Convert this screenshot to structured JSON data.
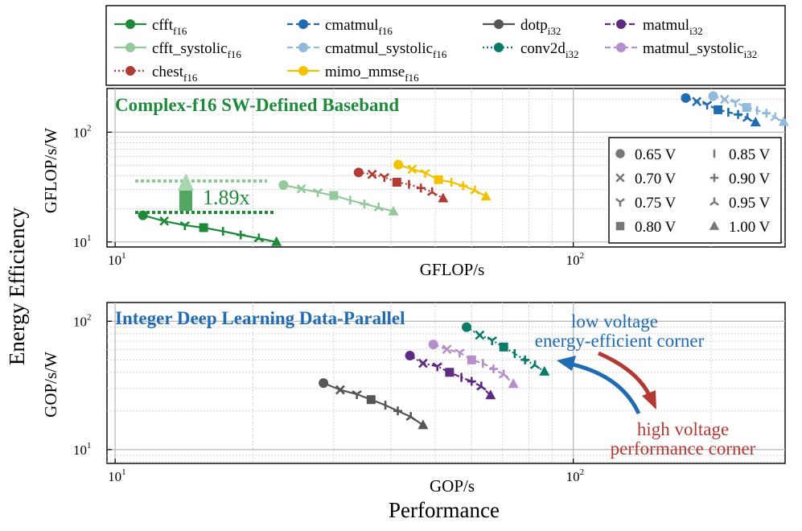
{
  "figure": {
    "ylabel": "Energy Efficiency",
    "xlabel": "Performance"
  },
  "colors": {
    "cfft_f16": "#1f8b3a",
    "cfft_systolic_f16": "#93c99b",
    "chest_f16": "#b23a35",
    "mimo_mmse_f16": "#f2c200",
    "cmatmul_f16": "#1f6bb4",
    "cmatmul_systolic_f16": "#90bbdd",
    "dotp_i32": "#555555",
    "conv2d_i32": "#0b7b69",
    "matmul_i32": "#5e2a84",
    "matmul_systolic_i32": "#b58fcc",
    "annotation_green": "#1f8b3a",
    "annotation_blue": "#1f6bb4",
    "annotation_red": "#b23a35",
    "marker_legend": "#777777"
  },
  "legend": {
    "entries": [
      {
        "key": "cfft_f16",
        "name": "cfft",
        "sub": "f16",
        "style": "solid"
      },
      {
        "key": "cmatmul_f16",
        "name": "cmatmul",
        "sub": "f16",
        "style": "dashed"
      },
      {
        "key": "dotp_i32",
        "name": "dotp",
        "sub": "i32",
        "style": "solid"
      },
      {
        "key": "matmul_i32",
        "name": "matmul",
        "sub": "i32",
        "style": "dashdot"
      },
      {
        "key": "cfft_systolic_f16",
        "name": "cfft_systolic",
        "sub": "f16",
        "style": "solid"
      },
      {
        "key": "cmatmul_systolic_f16",
        "name": "cmatmul_systolic",
        "sub": "f16",
        "style": "dashed"
      },
      {
        "key": "conv2d_i32",
        "name": "conv2d",
        "sub": "i32",
        "style": "dotted"
      },
      {
        "key": "matmul_systolic_i32",
        "name": "matmul_systolic",
        "sub": "i32",
        "style": "dashed"
      },
      {
        "key": "chest_f16",
        "name": "chest",
        "sub": "f16",
        "style": "dotted"
      },
      {
        "key": "mimo_mmse_f16",
        "name": "mimo_mmse",
        "sub": "f16",
        "style": "solid"
      }
    ]
  },
  "voltage_legend": {
    "entries": [
      {
        "marker": "circle",
        "label": "0.65 V"
      },
      {
        "marker": "x",
        "label": "0.70 V"
      },
      {
        "marker": "tri_down",
        "label": "0.75 V"
      },
      {
        "marker": "square",
        "label": "0.80 V"
      },
      {
        "marker": "vline",
        "label": "0.85 V"
      },
      {
        "marker": "plus",
        "label": "0.90 V"
      },
      {
        "marker": "tri_up_thin",
        "label": "0.95 V"
      },
      {
        "marker": "triangle",
        "label": "1.00 V"
      }
    ]
  },
  "chart_data": [
    {
      "type": "line",
      "title": "Complex-f16 SW-Defined Baseband",
      "xlabel": "GFLOP/s",
      "ylabel": "GFLOP/s/W",
      "xscale": "log",
      "yscale": "log",
      "xlim": [
        9.6,
        290
      ],
      "ylim": [
        9,
        250
      ],
      "xticks": [
        10,
        100
      ],
      "yticks": [
        10,
        100
      ],
      "grid": true,
      "voltages": [
        "0.65 V",
        "0.70 V",
        "0.75 V",
        "0.80 V",
        "0.85 V",
        "0.90 V",
        "0.95 V",
        "1.00 V"
      ],
      "series": [
        {
          "key": "cfft_f16",
          "name": "cfft_f16",
          "x": [
            11.5,
            12.8,
            14.2,
            15.6,
            17.2,
            18.8,
            20.6,
            22.5
          ],
          "y": [
            17.5,
            15.5,
            14.2,
            13.5,
            12.5,
            11.6,
            10.8,
            10.0
          ]
        },
        {
          "key": "cfft_systolic_f16",
          "name": "cfft_systolic_f16",
          "x": [
            23.3,
            25.5,
            27.7,
            30.0,
            32.6,
            35.0,
            37.6,
            40.5
          ],
          "y": [
            33.0,
            30.5,
            28.4,
            26.5,
            24.0,
            22.2,
            20.6,
            19.0
          ]
        },
        {
          "key": "chest_f16",
          "name": "chest_f16",
          "x": [
            34.0,
            36.4,
            38.7,
            41.2,
            43.8,
            46.5,
            49.2,
            52.0
          ],
          "y": [
            43.0,
            41.3,
            39.0,
            35.0,
            33.5,
            31.0,
            28.5,
            25.0
          ]
        },
        {
          "key": "mimo_mmse_f16",
          "name": "mimo_mmse_f16",
          "x": [
            41.5,
            44.5,
            47.5,
            50.8,
            54.2,
            57.5,
            61.0,
            64.5
          ],
          "y": [
            50.5,
            46.0,
            42.5,
            37.0,
            35.0,
            32.5,
            29.5,
            26.0
          ]
        },
        {
          "key": "cmatmul_f16",
          "name": "cmatmul_f16",
          "x": [
            176,
            186,
            196,
            207,
            218,
            229,
            240,
            250
          ],
          "y": [
            205,
            190,
            178,
            160,
            152,
            145,
            135,
            123
          ]
        },
        {
          "key": "cmatmul_systolic_f16",
          "name": "cmatmul_systolic_f16",
          "x": [
            202,
            214,
            226,
            239,
            252,
            264,
            276,
            288
          ],
          "y": [
            213,
            199,
            187,
            168,
            158,
            149,
            137,
            124
          ]
        }
      ],
      "annotations": [
        {
          "text": "1.89x",
          "kind": "improvement",
          "from": "cfft_f16",
          "to": "cfft_systolic_f16"
        }
      ]
    },
    {
      "type": "line",
      "title": "Integer Deep Learning Data-Parallel",
      "xlabel": "GOP/s",
      "ylabel": "GOP/s/W",
      "xscale": "log",
      "yscale": "log",
      "xlim": [
        9.6,
        290
      ],
      "ylim": [
        7.8,
        140
      ],
      "xticks": [
        10,
        100
      ],
      "yticks": [
        10,
        100
      ],
      "grid": true,
      "voltages": [
        "0.65 V",
        "0.70 V",
        "0.75 V",
        "0.80 V",
        "0.85 V",
        "0.90 V",
        "0.95 V",
        "1.00 V"
      ],
      "series": [
        {
          "key": "dotp_i32",
          "name": "dotp_i32",
          "x": [
            28.5,
            31.0,
            33.7,
            36.2,
            38.9,
            41.4,
            44.2,
            47.0
          ],
          "y": [
            33.0,
            29.2,
            27.0,
            24.5,
            22.2,
            20.0,
            18.0,
            15.5
          ]
        },
        {
          "key": "matmul_i32",
          "name": "matmul_i32",
          "x": [
            44.0,
            47.0,
            50.5,
            53.7,
            57.0,
            60.0,
            63.0,
            66.0
          ],
          "y": [
            54.0,
            47.0,
            44.5,
            40.0,
            36.5,
            34.0,
            31.0,
            26.5
          ]
        },
        {
          "key": "matmul_systolic_i32",
          "name": "matmul_systolic_i32",
          "x": [
            49.5,
            53.0,
            56.5,
            60.0,
            63.5,
            67.0,
            70.5,
            74.0
          ],
          "y": [
            66.0,
            60.5,
            57.0,
            50.0,
            47.0,
            42.5,
            38.5,
            32.5
          ]
        },
        {
          "key": "conv2d_i32",
          "name": "conv2d_i32",
          "x": [
            58.5,
            62.5,
            66.5,
            70.5,
            74.5,
            78.5,
            82.5,
            86.5
          ],
          "y": [
            90.0,
            78.0,
            71.0,
            63.0,
            56.0,
            50.0,
            45.5,
            40.5
          ]
        }
      ],
      "annotations": [
        {
          "text": "low voltage",
          "kind": "label",
          "color_key": "annotation_blue"
        },
        {
          "text": "energy-efficient corner",
          "kind": "label",
          "color_key": "annotation_blue"
        },
        {
          "text": "high voltage",
          "kind": "label",
          "color_key": "annotation_red"
        },
        {
          "text": "performance corner",
          "kind": "label",
          "color_key": "annotation_red"
        }
      ]
    }
  ]
}
